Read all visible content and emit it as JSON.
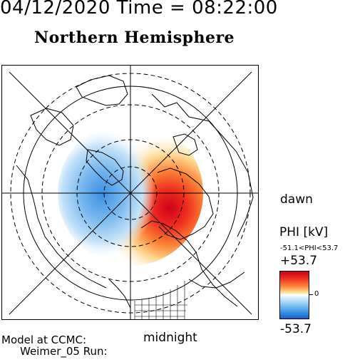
{
  "header": {
    "date_time": "04/12/2020 Time = 08:22:00",
    "title": "Northern Hemisphere"
  },
  "map": {
    "projection": "polar",
    "dawn_label": "dawn",
    "midnight_label": "midnight"
  },
  "colorbar": {
    "variable_label": "PHI [kV]",
    "range_text": "-51.1<PHI<53.7",
    "max_label": "+53.7",
    "min_label": "-53.7",
    "zero_label": "0",
    "colors": {
      "positive": "#e0121c",
      "negative": "#1a6fd8",
      "neutral": "#ffffff"
    }
  },
  "footer": {
    "model_line1": "Model at CCMC:",
    "model_line2": "Weimer_05 Run:"
  }
}
